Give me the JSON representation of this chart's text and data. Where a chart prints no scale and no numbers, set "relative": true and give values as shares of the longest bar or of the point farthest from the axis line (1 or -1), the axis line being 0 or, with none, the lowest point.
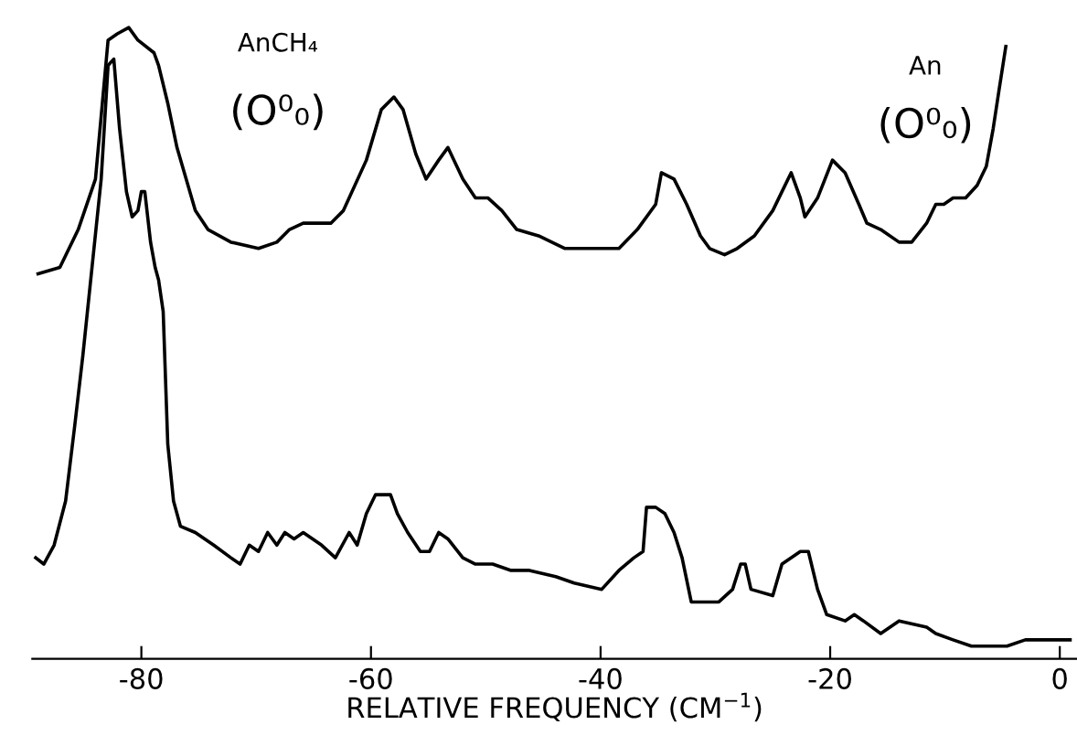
{
  "chart_data": {
    "type": "line",
    "relative": true,
    "xlabel": "RELATIVE FREQUENCY (CM$^{−1}$)",
    "xlim": [
      -89.5,
      1.5
    ],
    "xticks": [
      -80,
      -60,
      -40,
      -20,
      0
    ],
    "tick_labels": "x",
    "grid": false,
    "legend": false,
    "annotations": [
      "AnCH₄",
      "(O⁰₀)",
      "An",
      "(O⁰₀)"
    ],
    "series": [
      {
        "color": "#000000",
        "x": [
          -89.0,
          -87.1,
          -85.5,
          -84.0,
          -82.9,
          -82.1,
          -81.1,
          -80.3,
          -78.9,
          -78.5,
          -77.7,
          -76.9,
          -76.1,
          -75.3,
          -74.2,
          -72.2,
          -69.8,
          -68.2,
          -67.1,
          -65.9,
          -63.5,
          -62.4,
          -60.4,
          -59.1,
          -58.0,
          -57.2,
          -56.1,
          -55.2,
          -54.1,
          -53.3,
          -52.0,
          -50.9,
          -49.8,
          -48.6,
          -47.3,
          -45.4,
          -43.1,
          -41.5,
          -39.9,
          -38.4,
          -36.8,
          -35.2,
          -34.7,
          -33.6,
          -32.5,
          -31.3,
          -30.5,
          -29.2,
          -28.1,
          -26.6,
          -25.0,
          -24.2,
          -23.4,
          -22.6,
          -22.2,
          -21.1,
          -19.8,
          -18.7,
          -17.5,
          -16.8,
          -15.6,
          -14.0,
          -12.9,
          -11.6,
          -10.8,
          -10.1,
          -9.3,
          -8.2,
          -7.2,
          -6.4,
          -5.8,
          -5.3,
          -4.7
        ],
        "values": [
          0.61,
          0.62,
          0.68,
          0.76,
          0.98,
          0.99,
          1.0,
          0.98,
          0.96,
          0.94,
          0.88,
          0.81,
          0.76,
          0.71,
          0.68,
          0.66,
          0.65,
          0.66,
          0.68,
          0.69,
          0.69,
          0.71,
          0.79,
          0.87,
          0.89,
          0.87,
          0.8,
          0.76,
          0.79,
          0.81,
          0.76,
          0.73,
          0.73,
          0.71,
          0.68,
          0.67,
          0.65,
          0.65,
          0.65,
          0.65,
          0.68,
          0.72,
          0.77,
          0.76,
          0.72,
          0.67,
          0.65,
          0.64,
          0.65,
          0.67,
          0.71,
          0.74,
          0.77,
          0.73,
          0.7,
          0.73,
          0.79,
          0.77,
          0.72,
          0.69,
          0.68,
          0.66,
          0.66,
          0.69,
          0.72,
          0.72,
          0.73,
          0.73,
          0.75,
          0.78,
          0.84,
          0.9,
          0.97
        ]
      },
      {
        "color": "#000000",
        "x": [
          -89.2,
          -88.5,
          -87.6,
          -86.6,
          -85.8,
          -85.1,
          -84.3,
          -83.5,
          -82.9,
          -82.4,
          -81.9,
          -81.3,
          -80.8,
          -80.3,
          -80.0,
          -79.7,
          -79.2,
          -78.8,
          -78.5,
          -78.1,
          -77.7,
          -77.2,
          -76.6,
          -75.3,
          -73.7,
          -72.2,
          -71.4,
          -70.6,
          -69.8,
          -69.0,
          -68.2,
          -67.5,
          -66.7,
          -65.9,
          -64.3,
          -63.1,
          -61.9,
          -61.2,
          -60.4,
          -59.6,
          -58.3,
          -57.7,
          -56.8,
          -55.7,
          -54.9,
          -54.1,
          -53.3,
          -52.0,
          -50.9,
          -49.4,
          -47.8,
          -46.2,
          -43.9,
          -42.3,
          -39.9,
          -38.4,
          -37.1,
          -36.3,
          -36.0,
          -35.2,
          -34.4,
          -33.6,
          -32.9,
          -32.1,
          -29.7,
          -28.5,
          -27.8,
          -27.4,
          -26.9,
          -25.0,
          -24.2,
          -22.6,
          -21.9,
          -21.1,
          -20.3,
          -18.7,
          -17.9,
          -17.1,
          -15.6,
          -14.0,
          -11.6,
          -10.8,
          -9.3,
          -7.7,
          -4.6,
          -3.0,
          -0.6,
          0.9
        ],
        "values": [
          0.16,
          0.15,
          0.18,
          0.25,
          0.37,
          0.48,
          0.62,
          0.76,
          0.94,
          0.95,
          0.84,
          0.74,
          0.7,
          0.71,
          0.74,
          0.74,
          0.66,
          0.62,
          0.6,
          0.55,
          0.34,
          0.25,
          0.21,
          0.2,
          0.18,
          0.16,
          0.15,
          0.18,
          0.17,
          0.2,
          0.18,
          0.2,
          0.19,
          0.2,
          0.18,
          0.16,
          0.2,
          0.18,
          0.23,
          0.26,
          0.26,
          0.23,
          0.2,
          0.17,
          0.17,
          0.2,
          0.19,
          0.16,
          0.15,
          0.15,
          0.14,
          0.14,
          0.13,
          0.12,
          0.11,
          0.14,
          0.16,
          0.17,
          0.24,
          0.24,
          0.23,
          0.2,
          0.16,
          0.09,
          0.09,
          0.11,
          0.15,
          0.15,
          0.11,
          0.1,
          0.15,
          0.17,
          0.17,
          0.11,
          0.07,
          0.06,
          0.07,
          0.06,
          0.04,
          0.06,
          0.05,
          0.04,
          0.03,
          0.02,
          0.02,
          0.03,
          0.03,
          0.03
        ]
      }
    ]
  }
}
